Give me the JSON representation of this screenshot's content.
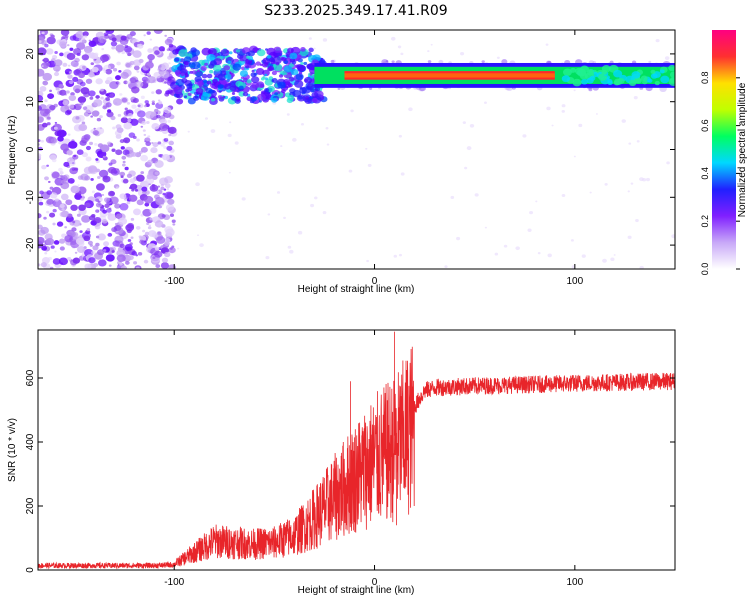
{
  "title": "S233.2025.349.17.41.R09",
  "chart_data": [
    {
      "type": "heatmap",
      "xlabel": "Height of straight line (km)",
      "ylabel": "Frequency (Hz)",
      "xlim": [
        -168,
        150
      ],
      "ylim": [
        -25,
        25
      ],
      "xticks": [
        -100,
        0,
        100
      ],
      "yticks": [
        -20,
        -10,
        0,
        10,
        20
      ],
      "colorbar": {
        "label": "Normalized spectral amplitude",
        "range": [
          0,
          1
        ],
        "ticks": [
          0.0,
          0.2,
          0.4,
          0.6,
          0.8
        ],
        "colormap": [
          "#ffffff",
          "#c8a8f8",
          "#8020ff",
          "#2020ff",
          "#00d8ff",
          "#00ff60",
          "#c0ff00",
          "#ffe000",
          "#ff3030",
          "#ff0080"
        ]
      },
      "ridge": {
        "x_start": -30,
        "x_end": 150,
        "frequency": 15.5
      },
      "scatter_region_x": [
        -168,
        -100
      ],
      "cluster_region_x": [
        -100,
        -25
      ]
    },
    {
      "type": "line",
      "xlabel": "Height of straight line (km)",
      "ylabel": "SNR (10 * v/v)",
      "xlim": [
        -168,
        150
      ],
      "ylim": [
        0,
        750
      ],
      "xticks": [
        -100,
        0,
        100
      ],
      "yticks": [
        0,
        200,
        400,
        600
      ],
      "color": "#e8252a",
      "envelope": [
        {
          "x": -168,
          "y": 15
        },
        {
          "x": -110,
          "y": 15
        },
        {
          "x": -100,
          "y": 20
        },
        {
          "x": -90,
          "y": 60
        },
        {
          "x": -80,
          "y": 100
        },
        {
          "x": -70,
          "y": 95
        },
        {
          "x": -60,
          "y": 90
        },
        {
          "x": -50,
          "y": 95
        },
        {
          "x": -40,
          "y": 120
        },
        {
          "x": -30,
          "y": 180
        },
        {
          "x": -20,
          "y": 250
        },
        {
          "x": -10,
          "y": 320
        },
        {
          "x": 0,
          "y": 380
        },
        {
          "x": 5,
          "y": 400
        },
        {
          "x": 10,
          "y": 420
        },
        {
          "x": 15,
          "y": 460
        },
        {
          "x": 20,
          "y": 510
        },
        {
          "x": 25,
          "y": 560
        },
        {
          "x": 30,
          "y": 570
        },
        {
          "x": 50,
          "y": 575
        },
        {
          "x": 80,
          "y": 580
        },
        {
          "x": 110,
          "y": 585
        },
        {
          "x": 150,
          "y": 590
        }
      ],
      "spikes": [
        {
          "x": 10,
          "y": 745
        },
        {
          "x": 11,
          "y": 140
        },
        {
          "x": -12,
          "y": 590
        }
      ]
    }
  ]
}
